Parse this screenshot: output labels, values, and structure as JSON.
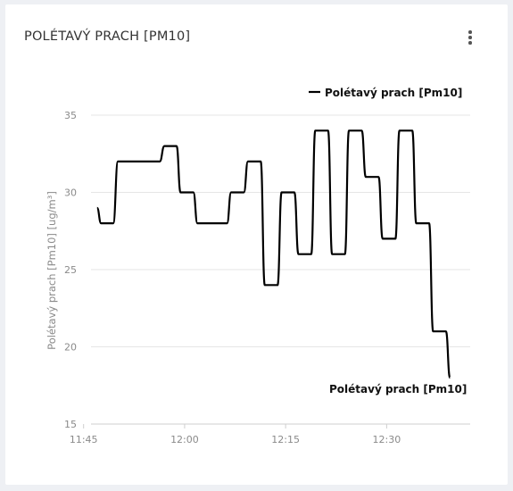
{
  "card": {
    "title": "POLÉTAVÝ PRACH [PM10]",
    "menu_icon": "kebab-menu-icon"
  },
  "chart_data": {
    "type": "line",
    "ylabel": "Polétavý prach [Pm10] [ug/m³]",
    "ylim": [
      15,
      35
    ],
    "yticks": [
      15,
      20,
      25,
      30,
      35
    ],
    "xticks": [
      {
        "label": "11:45",
        "minute": 705
      },
      {
        "label": "12:00",
        "minute": 720
      },
      {
        "label": "12:15",
        "minute": 735
      },
      {
        "label": "12:30",
        "minute": 750
      }
    ],
    "xlim_minutes": [
      706.1,
      762.4
    ],
    "grid": true,
    "legend": {
      "position": "top-right",
      "label": "Polétavý prach [Pm10]"
    },
    "end_label": "Polétavý prach [Pm10]",
    "series": [
      {
        "name": "Polétavý prach [Pm10]",
        "color": "#000000",
        "points": [
          [
            707.0,
            29.0
          ],
          [
            707.6,
            28.0
          ],
          [
            709.4,
            28.0
          ],
          [
            710.1,
            32.0
          ],
          [
            716.3,
            32.0
          ],
          [
            717.0,
            33.0
          ],
          [
            718.8,
            33.0
          ],
          [
            719.4,
            30.0
          ],
          [
            721.3,
            30.0
          ],
          [
            721.9,
            28.0
          ],
          [
            726.3,
            28.0
          ],
          [
            726.9,
            30.0
          ],
          [
            728.8,
            30.0
          ],
          [
            729.4,
            32.0
          ],
          [
            731.3,
            32.0
          ],
          [
            731.9,
            24.0
          ],
          [
            733.8,
            24.0
          ],
          [
            734.4,
            30.0
          ],
          [
            736.3,
            30.0
          ],
          [
            736.9,
            26.0
          ],
          [
            738.8,
            26.0
          ],
          [
            739.4,
            34.0
          ],
          [
            741.3,
            34.0
          ],
          [
            741.9,
            26.0
          ],
          [
            743.8,
            26.0
          ],
          [
            744.4,
            34.0
          ],
          [
            746.3,
            34.0
          ],
          [
            746.9,
            31.0
          ],
          [
            748.8,
            31.0
          ],
          [
            749.4,
            27.0
          ],
          [
            751.3,
            27.0
          ],
          [
            751.9,
            34.0
          ],
          [
            753.8,
            34.0
          ],
          [
            754.4,
            28.0
          ],
          [
            756.3,
            28.0
          ],
          [
            756.9,
            21.0
          ],
          [
            758.8,
            21.0
          ],
          [
            759.4,
            18.0
          ]
        ]
      }
    ]
  }
}
